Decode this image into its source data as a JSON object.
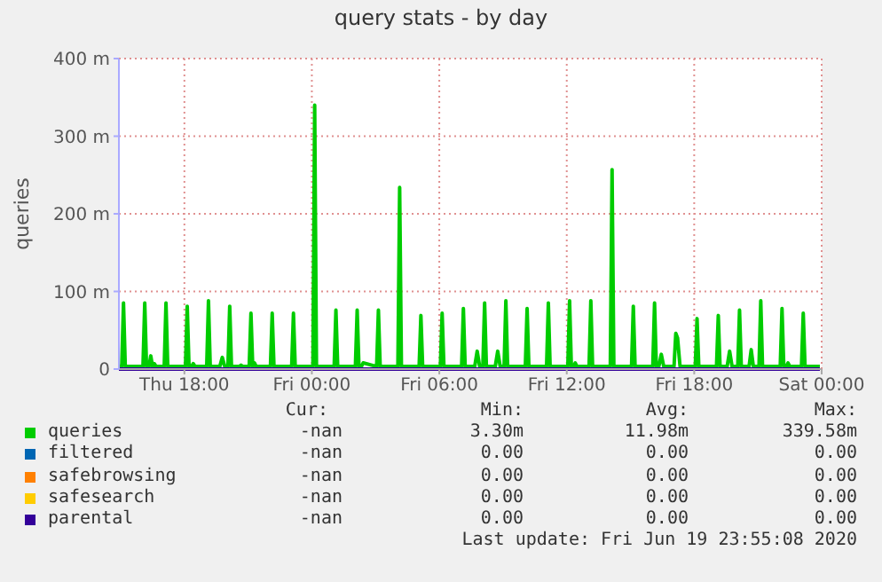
{
  "chart_data": {
    "type": "line",
    "title": "query stats - by day",
    "ylabel": "queries",
    "xlim": [
      "2020-06-18T14:55",
      "2020-06-20T00:00"
    ],
    "xticks": [
      {
        "value": "2020-06-18T18:00",
        "label": "Thu 18:00"
      },
      {
        "value": "2020-06-19T00:00",
        "label": "Fri 00:00"
      },
      {
        "value": "2020-06-19T06:00",
        "label": "Fri 06:00"
      },
      {
        "value": "2020-06-19T12:00",
        "label": "Fri 12:00"
      },
      {
        "value": "2020-06-19T18:00",
        "label": "Fri 18:00"
      },
      {
        "value": "2020-06-20T00:00",
        "label": "Sat 00:00"
      }
    ],
    "ylim": [
      0,
      400
    ],
    "yticks": [
      0,
      {
        "value": 100,
        "label": "100 m"
      },
      {
        "value": 200,
        "label": "200 m"
      },
      {
        "value": 300,
        "label": "300 m"
      },
      {
        "value": 400,
        "label": "400 m"
      }
    ],
    "grid": true,
    "legend": "bottom",
    "marker": "none",
    "line_style": "solid",
    "series": [
      {
        "name": "queries",
        "color": "#00cc00",
        "x": [
          "2020-06-18T14:55",
          "2020-06-18T15:03",
          "2020-06-18T15:08",
          "2020-06-18T15:13",
          "2020-06-18T16:03",
          "2020-06-18T16:08",
          "2020-06-18T16:13",
          "2020-06-18T16:20",
          "2020-06-18T16:25",
          "2020-06-18T16:30",
          "2020-06-18T16:35",
          "2020-06-18T16:40",
          "2020-06-18T17:03",
          "2020-06-18T17:08",
          "2020-06-18T17:13",
          "2020-06-18T18:03",
          "2020-06-18T18:08",
          "2020-06-18T18:13",
          "2020-06-18T18:20",
          "2020-06-18T18:25",
          "2020-06-18T18:30",
          "2020-06-18T19:03",
          "2020-06-18T19:08",
          "2020-06-18T19:13",
          "2020-06-18T19:40",
          "2020-06-18T19:47",
          "2020-06-18T19:54",
          "2020-06-18T20:03",
          "2020-06-18T20:08",
          "2020-06-18T20:13",
          "2020-06-18T20:35",
          "2020-06-18T20:40",
          "2020-06-18T20:45",
          "2020-06-18T21:03",
          "2020-06-18T21:08",
          "2020-06-18T21:13",
          "2020-06-18T21:18",
          "2020-06-18T21:23",
          "2020-06-18T22:03",
          "2020-06-18T22:08",
          "2020-06-18T22:13",
          "2020-06-18T23:03",
          "2020-06-18T23:08",
          "2020-06-18T23:13",
          "2020-06-19T00:03",
          "2020-06-19T00:08",
          "2020-06-19T00:13",
          "2020-06-19T01:03",
          "2020-06-19T01:08",
          "2020-06-19T01:13",
          "2020-06-19T02:03",
          "2020-06-19T02:08",
          "2020-06-19T02:13",
          "2020-06-19T02:20",
          "2020-06-19T02:25",
          "2020-06-19T03:03",
          "2020-06-19T03:08",
          "2020-06-19T03:13",
          "2020-06-19T04:03",
          "2020-06-19T04:08",
          "2020-06-19T04:13",
          "2020-06-19T05:03",
          "2020-06-19T05:08",
          "2020-06-19T05:13",
          "2020-06-19T06:03",
          "2020-06-19T06:08",
          "2020-06-19T06:13",
          "2020-06-19T07:03",
          "2020-06-19T07:08",
          "2020-06-19T07:13",
          "2020-06-19T07:40",
          "2020-06-19T07:47",
          "2020-06-19T07:54",
          "2020-06-19T08:03",
          "2020-06-19T08:08",
          "2020-06-19T08:13",
          "2020-06-19T08:38",
          "2020-06-19T08:45",
          "2020-06-19T08:52",
          "2020-06-19T09:03",
          "2020-06-19T09:08",
          "2020-06-19T09:13",
          "2020-06-19T10:03",
          "2020-06-19T10:08",
          "2020-06-19T10:13",
          "2020-06-19T11:03",
          "2020-06-19T11:08",
          "2020-06-19T11:13",
          "2020-06-19T12:03",
          "2020-06-19T12:08",
          "2020-06-19T12:13",
          "2020-06-19T12:19",
          "2020-06-19T12:24",
          "2020-06-19T12:29",
          "2020-06-19T13:03",
          "2020-06-19T13:08",
          "2020-06-19T13:13",
          "2020-06-19T14:03",
          "2020-06-19T14:08",
          "2020-06-19T14:13",
          "2020-06-19T15:03",
          "2020-06-19T15:08",
          "2020-06-19T15:13",
          "2020-06-19T16:03",
          "2020-06-19T16:08",
          "2020-06-19T16:13",
          "2020-06-19T16:20",
          "2020-06-19T16:27",
          "2020-06-19T16:34",
          "2020-06-19T17:03",
          "2020-06-19T17:08",
          "2020-06-19T17:13",
          "2020-06-19T17:20",
          "2020-06-19T18:03",
          "2020-06-19T18:08",
          "2020-06-19T18:13",
          "2020-06-19T19:03",
          "2020-06-19T19:08",
          "2020-06-19T19:13",
          "2020-06-19T19:33",
          "2020-06-19T19:40",
          "2020-06-19T19:47",
          "2020-06-19T20:03",
          "2020-06-19T20:08",
          "2020-06-19T20:13",
          "2020-06-19T20:35",
          "2020-06-19T20:41",
          "2020-06-19T20:47",
          "2020-06-19T21:03",
          "2020-06-19T21:08",
          "2020-06-19T21:13",
          "2020-06-19T22:03",
          "2020-06-19T22:08",
          "2020-06-19T22:13",
          "2020-06-19T22:20",
          "2020-06-19T22:25",
          "2020-06-19T22:30",
          "2020-06-19T23:03",
          "2020-06-19T23:08",
          "2020-06-19T23:13",
          "2020-06-19T23:55"
        ],
        "values": [
          3.3,
          3.3,
          85,
          3.3,
          3.3,
          85,
          3.3,
          3.3,
          17,
          3.3,
          7,
          3.3,
          3.3,
          85,
          3.3,
          3.3,
          81,
          3.3,
          3.3,
          7,
          3.3,
          3.3,
          88,
          3.3,
          3.3,
          15,
          3.3,
          3.3,
          81,
          3.3,
          3.3,
          5,
          3.3,
          3.3,
          72,
          3.3,
          8,
          3.3,
          3.3,
          72,
          3.3,
          3.3,
          72,
          3.3,
          3.3,
          340,
          3.3,
          3.3,
          76,
          3.3,
          3.3,
          76,
          3.3,
          3.3,
          8,
          3.3,
          76,
          3.3,
          3.3,
          234,
          3.3,
          3.3,
          69,
          3.3,
          3.3,
          72,
          3.3,
          3.3,
          78,
          3.3,
          3.3,
          23,
          3.3,
          3.3,
          85,
          3.3,
          3.3,
          23,
          3.3,
          3.3,
          88,
          3.3,
          3.3,
          78,
          3.3,
          3.3,
          85,
          3.3,
          3.3,
          88,
          3.3,
          3.3,
          8,
          3.3,
          3.3,
          88,
          3.3,
          3.3,
          257,
          3.3,
          3.3,
          81,
          3.3,
          3.3,
          85,
          3.3,
          3.3,
          19,
          3.3,
          3.3,
          46,
          40,
          3.3,
          3.3,
          65,
          3.3,
          3.3,
          69,
          3.3,
          3.3,
          23,
          3.3,
          3.3,
          76,
          3.3,
          3.3,
          25,
          3.3,
          3.3,
          88,
          3.3,
          3.3,
          78,
          3.3,
          3.3,
          8,
          3.3,
          3.3,
          72,
          3.3,
          3.3
        ]
      },
      {
        "name": "filtered",
        "color": "#0066b3",
        "values": [
          null
        ]
      },
      {
        "name": "safebrowsing",
        "color": "#ff8000",
        "values": [
          null
        ]
      },
      {
        "name": "safesearch",
        "color": "#ffcc00",
        "values": [
          null
        ]
      },
      {
        "name": "parental",
        "color": "#330099",
        "x": [
          "2020-06-18T14:55",
          "2020-06-19T23:55"
        ],
        "values": [
          0,
          0
        ]
      }
    ],
    "annotations": [
      "Cur:",
      "Min:",
      "Avg:",
      "Max:",
      "-nan",
      "3.30m",
      "11.98m",
      "339.58m",
      "-nan",
      "0.00",
      "0.00",
      "0.00",
      "-nan",
      "0.00",
      "0.00",
      "0.00",
      "-nan",
      "0.00",
      "0.00",
      "0.00",
      "-nan",
      "0.00",
      "0.00",
      "0.00",
      "Last update: Fri Jun 19 23:55:08 2020"
    ]
  }
}
